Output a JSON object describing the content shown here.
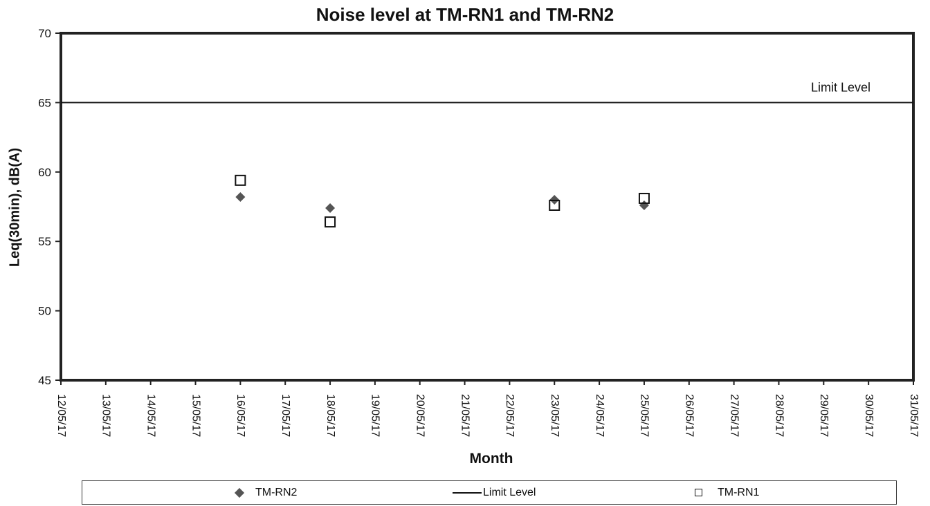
{
  "chart_data": {
    "type": "scatter",
    "title": "Noise level at TM-RN1 and TM-RN2",
    "xlabel": "Month",
    "ylabel": "Leq(30min), dB(A)",
    "x_tick_labels": [
      "12/05/17",
      "13/05/17",
      "14/05/17",
      "15/05/17",
      "16/05/17",
      "17/05/17",
      "18/05/17",
      "19/05/17",
      "20/05/17",
      "21/05/17",
      "22/05/17",
      "23/05/17",
      "24/05/17",
      "25/05/17",
      "26/05/17",
      "27/05/17",
      "28/05/17",
      "29/05/17",
      "30/05/17",
      "31/05/17"
    ],
    "y_ticks": [
      45,
      50,
      55,
      60,
      65,
      70
    ],
    "ylim": [
      45,
      70
    ],
    "grid": false,
    "legend_position": "bottom",
    "series": [
      {
        "name": "TM-RN2",
        "marker": "diamond",
        "color": "#555555",
        "x": [
          "16/05/17",
          "18/05/17",
          "23/05/17",
          "25/05/17"
        ],
        "y": [
          58.2,
          57.4,
          58.0,
          57.6
        ]
      },
      {
        "name": "TM-RN1",
        "marker": "square-open",
        "color": "#111111",
        "x": [
          "16/05/17",
          "18/05/17",
          "23/05/17",
          "25/05/17"
        ],
        "y": [
          59.4,
          56.4,
          57.6,
          58.1
        ]
      },
      {
        "name": "Limit Level",
        "marker": "line",
        "color": "#111111",
        "x": [
          "12/05/17",
          "31/05/17"
        ],
        "y": [
          65,
          65
        ]
      }
    ],
    "annotations": [
      {
        "text": "Limit Level",
        "x": "31/05/17",
        "y": 65
      }
    ]
  }
}
